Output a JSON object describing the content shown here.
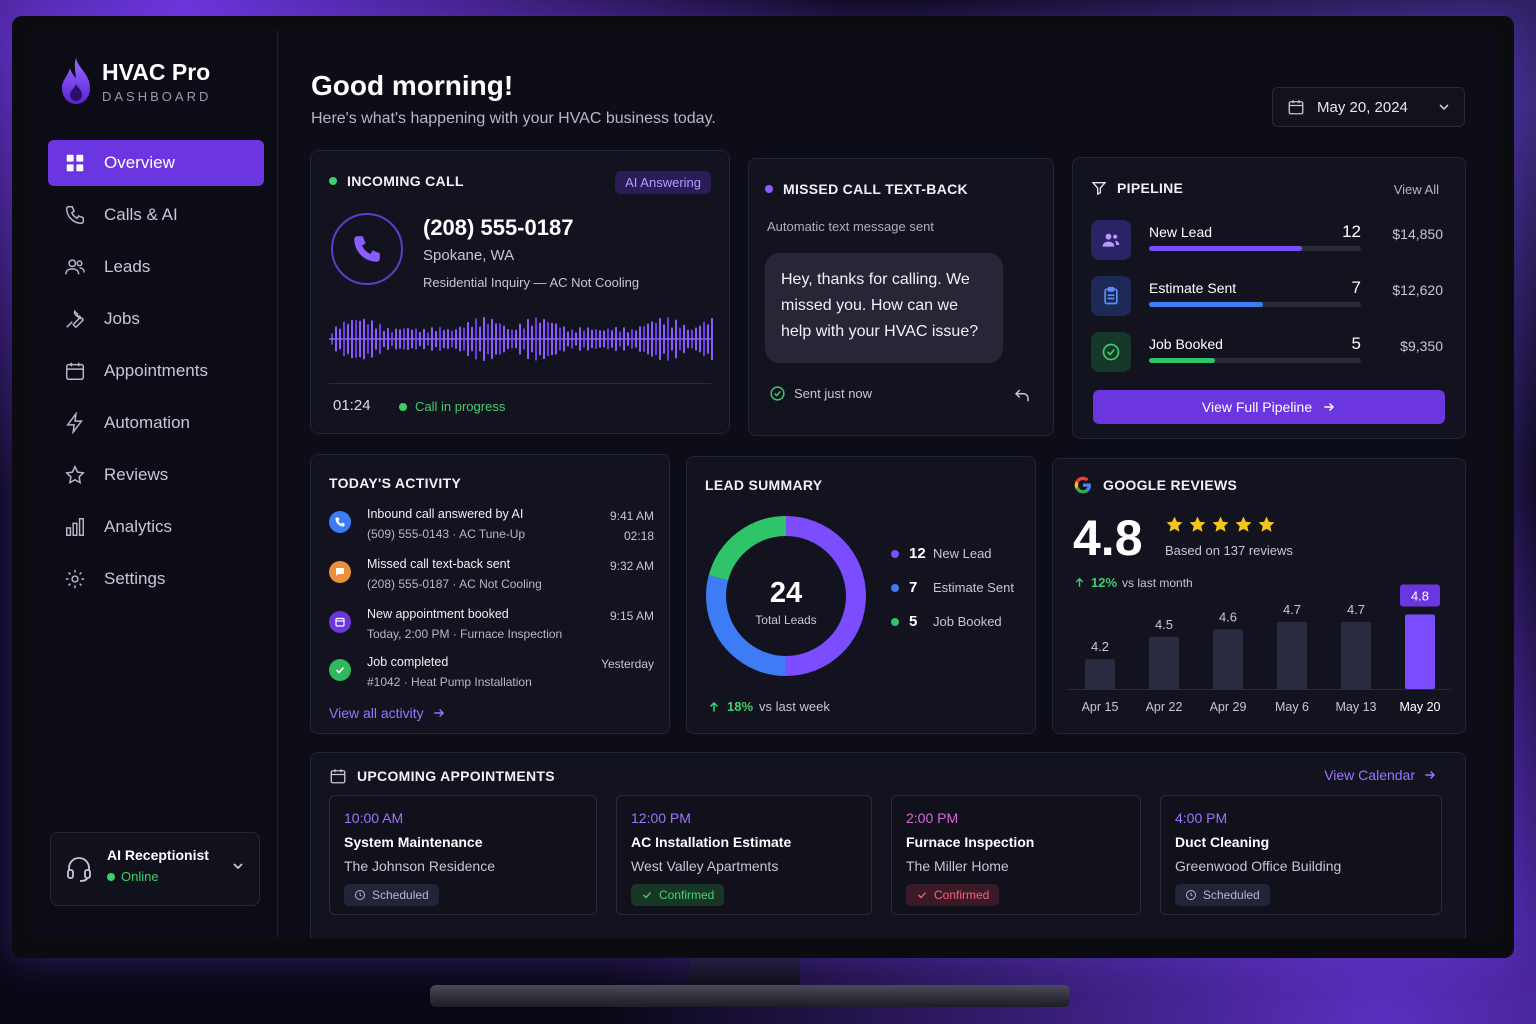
{
  "app": {
    "name": "HVAC Pro",
    "subtitle": "DASHBOARD"
  },
  "sidebar": {
    "items": [
      {
        "label": "Overview",
        "icon": "grid-icon",
        "active": true
      },
      {
        "label": "Calls & AI",
        "icon": "phone-icon"
      },
      {
        "label": "Leads",
        "icon": "users-icon"
      },
      {
        "label": "Jobs",
        "icon": "wrench-icon"
      },
      {
        "label": "Appointments",
        "icon": "calendar-icon"
      },
      {
        "label": "Automation",
        "icon": "bolt-icon"
      },
      {
        "label": "Reviews",
        "icon": "star-icon"
      },
      {
        "label": "Analytics",
        "icon": "bar-chart-icon"
      },
      {
        "label": "Settings",
        "icon": "gear-icon"
      }
    ],
    "receptionist": {
      "title": "AI Receptionist",
      "status": "Online"
    }
  },
  "header": {
    "greeting": "Good morning!",
    "subtitle": "Here's what's happening with your HVAC business today.",
    "date": "May 20, 2024"
  },
  "incoming_call": {
    "title": "INCOMING CALL",
    "badge": "AI Answering",
    "number": "(208) 555-0187",
    "location": "Spokane, WA",
    "inquiry": "Residential Inquiry — AC Not Cooling",
    "timer": "01:24",
    "status": "Call in progress"
  },
  "missed_call": {
    "title": "MISSED CALL TEXT-BACK",
    "subtitle": "Automatic text message sent",
    "message": "Hey, thanks for calling. We missed you. How can we help with your HVAC issue?",
    "status": "Sent just now"
  },
  "pipeline": {
    "title": "PIPELINE",
    "view_all": "View All",
    "stages": [
      {
        "name": "New Lead",
        "count": "12",
        "amount": "$14,850",
        "progress": 0.72,
        "color": "#7b4dff"
      },
      {
        "name": "Estimate Sent",
        "count": "7",
        "amount": "$12,620",
        "progress": 0.54,
        "color": "#3d7cf5"
      },
      {
        "name": "Job Booked",
        "count": "5",
        "amount": "$9,350",
        "progress": 0.31,
        "color": "#2fc46a"
      }
    ],
    "button": "View Full Pipeline"
  },
  "activity": {
    "title": "TODAY'S ACTIVITY",
    "items": [
      {
        "title": "Inbound call answered by AI",
        "detail": "(509) 555-0143  ·  AC Tune-Up",
        "time": "9:41 AM",
        "time2": "02:18",
        "icon": "phone-icon",
        "color": "#3d7cf5"
      },
      {
        "title": "Missed call text-back sent",
        "detail": "(208) 555-0187  ·  AC Not Cooling",
        "time": "9:32 AM",
        "time2": "",
        "icon": "message-icon",
        "color": "#e8913a"
      },
      {
        "title": "New appointment booked",
        "detail": "Today, 2:00 PM  ·  Furnace Inspection",
        "time": "9:15 AM",
        "time2": "",
        "icon": "calendar-icon",
        "color": "#6b36e0"
      },
      {
        "title": "Job completed",
        "detail": "#1042  ·  Heat Pump Installation",
        "time": "Yesterday",
        "time2": "",
        "icon": "check-icon",
        "color": "#2fb85e"
      }
    ],
    "view_all": "View all activity"
  },
  "lead_summary": {
    "title": "LEAD SUMMARY",
    "total": "24",
    "total_label": "Total Leads",
    "legend": [
      {
        "count": "12",
        "label": "New Lead",
        "color": "#7b4dff"
      },
      {
        "count": "7",
        "label": "Estimate Sent",
        "color": "#3d7cf5"
      },
      {
        "count": "5",
        "label": "Job Booked",
        "color": "#2fc46a"
      }
    ],
    "growth": "18%",
    "growth_label": "vs last week"
  },
  "reviews": {
    "title": "GOOGLE REVIEWS",
    "rating": "4.8",
    "based": "Based on 137 reviews",
    "growth": "12%",
    "growth_label": "vs last month"
  },
  "chart_data": {
    "type": "bar",
    "categories": [
      "Apr 15",
      "Apr 22",
      "Apr 29",
      "May 6",
      "May 13",
      "May 20"
    ],
    "values": [
      4.2,
      4.5,
      4.6,
      4.7,
      4.7,
      4.8
    ],
    "highlight_index": 5,
    "ylim": [
      3.8,
      4.9
    ],
    "title": "",
    "xlabel": "",
    "ylabel": "",
    "grid": false
  },
  "appointments": {
    "title": "UPCOMING APPOINTMENTS",
    "view_calendar": "View Calendar",
    "items": [
      {
        "time": "10:00 AM",
        "title": "System Maintenance",
        "place": "The Johnson Residence",
        "status": "Scheduled",
        "color": "#9d74ff",
        "status_type": "scheduled"
      },
      {
        "time": "12:00 PM",
        "title": "AC Installation Estimate",
        "place": "West Valley Apartments",
        "status": "Confirmed",
        "color": "#9d74ff",
        "status_type": "confirmed"
      },
      {
        "time": "2:00 PM",
        "title": "Furnace Inspection",
        "place": "The Miller Home",
        "status": "Confirmed",
        "color": "#d36ad6",
        "status_type": "alert"
      },
      {
        "time": "4:00 PM",
        "title": "Duct Cleaning",
        "place": "Greenwood Office Building",
        "status": "Scheduled",
        "color": "#9d74ff",
        "status_type": "scheduled"
      }
    ]
  }
}
